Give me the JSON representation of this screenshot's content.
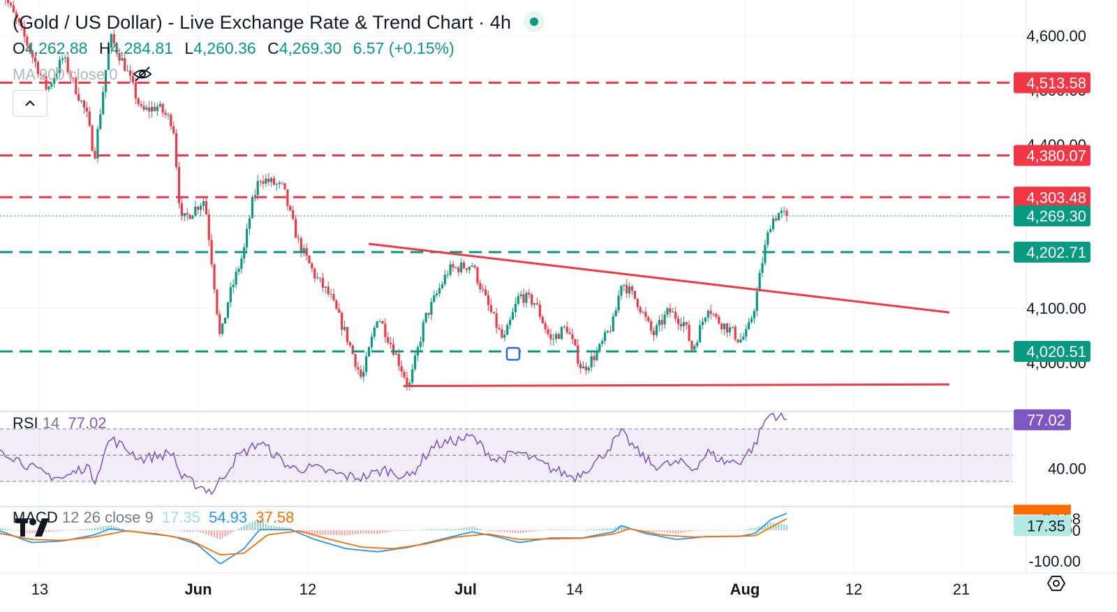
{
  "header": {
    "title": "(Gold / US Dollar) - Live Exchange Rate & Trend Chart · 4h",
    "ohlc": {
      "o_label": "O",
      "o": "4,262.88",
      "h_label": "H",
      "h": "4,284.81",
      "l_label": "L",
      "l": "4,260.36",
      "c_label": "C",
      "c": "4,269.30",
      "change": "6.57 (+0.15%)"
    },
    "ma_label": "MA 200 close 0"
  },
  "rsi_legend": {
    "name": "RSI",
    "period": "14",
    "value": "77.02"
  },
  "macd_legend": {
    "name": "MACD",
    "params": "12 26 close 9",
    "hist": "17.35",
    "macd": "54.93",
    "signal": "37.58"
  },
  "price_axis": {
    "ticks": [
      "4,600.00",
      "4,500.00",
      "4,400.00",
      "4,100.00",
      "4,000.00"
    ],
    "levels": [
      {
        "label": "4,513.58",
        "value": 4513.58,
        "color": "#f23645"
      },
      {
        "label": "4,380.07",
        "value": 4380.07,
        "color": "#f23645"
      },
      {
        "label": "4,303.48",
        "value": 4303.48,
        "color": "#f23645"
      },
      {
        "label": "4,269.30",
        "value": 4269.3,
        "color": "#089981"
      },
      {
        "label": "4,202.71",
        "value": 4202.71,
        "color": "#089981"
      },
      {
        "label": "4,020.51",
        "value": 4020.51,
        "color": "#089981"
      }
    ]
  },
  "rsi_axis": {
    "tick": "40.00",
    "badge": "77.02"
  },
  "macd_axis": {
    "ticks": [
      "37.58",
      "0.00",
      "-100.00"
    ],
    "badge": "17.35"
  },
  "time_axis": [
    "13",
    "Jun",
    "12",
    "Jul",
    "14",
    "Aug",
    "12",
    "21"
  ],
  "colors": {
    "up": "#089981",
    "down": "#f23645",
    "rsi": "#7e57c2",
    "macd": "#2196f3",
    "signal": "#ff6d00"
  },
  "icons": [
    "live-dot-icon",
    "eye-off-icon",
    "chevron-up-icon",
    "tradingview-logo-icon",
    "gear-icon"
  ],
  "chart_data": {
    "type": "candlestick",
    "interval": "4h",
    "ylim": [
      3915,
      4660
    ],
    "drawing": {
      "resistance_lines": [
        4513.58,
        4380.07,
        4303.48
      ],
      "support_lines": [
        4202.71,
        4020.51
      ],
      "trendline_upper": {
        "start": 4218,
        "end": 4092
      },
      "trendline_lower": {
        "start": 3957,
        "end": 3960
      }
    },
    "price_path": [
      [
        0,
        4690
      ],
      [
        3,
        4600
      ],
      [
        6,
        4500
      ],
      [
        8,
        4560
      ],
      [
        11,
        4455
      ],
      [
        12,
        4378
      ],
      [
        14,
        4598
      ],
      [
        16,
        4540
      ],
      [
        18,
        4460
      ],
      [
        20,
        4470
      ],
      [
        22,
        4440
      ],
      [
        23,
        4258
      ],
      [
        26,
        4300
      ],
      [
        27,
        4175
      ],
      [
        28,
        4040
      ],
      [
        29,
        4115
      ],
      [
        31,
        4205
      ],
      [
        32,
        4290
      ],
      [
        33,
        4340
      ],
      [
        36,
        4320
      ],
      [
        37,
        4265
      ],
      [
        38,
        4218
      ],
      [
        40,
        4160
      ],
      [
        42,
        4120
      ],
      [
        44,
        4050
      ],
      [
        46,
        3968
      ],
      [
        48,
        4088
      ],
      [
        50,
        4025
      ],
      [
        52,
        3955
      ],
      [
        54,
        4080
      ],
      [
        57,
        4170
      ],
      [
        60,
        4180
      ],
      [
        62,
        4105
      ],
      [
        64,
        4038
      ],
      [
        66,
        4124
      ],
      [
        68,
        4110
      ],
      [
        70,
        4040
      ],
      [
        72,
        4066
      ],
      [
        74,
        3986
      ],
      [
        76,
        4020
      ],
      [
        78,
        4076
      ],
      [
        79,
        4150
      ],
      [
        81,
        4112
      ],
      [
        83,
        4050
      ],
      [
        85,
        4095
      ],
      [
        87,
        4072
      ],
      [
        88,
        4022
      ],
      [
        90,
        4105
      ],
      [
        91,
        4080
      ],
      [
        93,
        4058
      ],
      [
        94,
        4040
      ],
      [
        95,
        4055
      ],
      [
        96,
        4110
      ],
      [
        97,
        4195
      ],
      [
        98,
        4260
      ],
      [
        99,
        4274
      ],
      [
        100,
        4269.3
      ]
    ],
    "rsi": {
      "period": 14,
      "ylim": [
        0,
        100
      ],
      "bands": [
        70,
        50,
        30
      ],
      "last": 77.02,
      "path": [
        [
          0,
          55
        ],
        [
          5,
          37
        ],
        [
          8,
          32
        ],
        [
          11,
          42
        ],
        [
          12,
          31
        ],
        [
          14,
          63
        ],
        [
          18,
          47
        ],
        [
          22,
          52
        ],
        [
          23,
          33
        ],
        [
          27,
          22
        ],
        [
          30,
          48
        ],
        [
          33,
          60
        ],
        [
          37,
          40
        ],
        [
          40,
          40
        ],
        [
          44,
          34
        ],
        [
          46,
          33
        ],
        [
          49,
          39
        ],
        [
          52,
          33
        ],
        [
          55,
          57
        ],
        [
          60,
          64
        ],
        [
          63,
          46
        ],
        [
          66,
          52
        ],
        [
          70,
          40
        ],
        [
          73,
          33
        ],
        [
          76,
          46
        ],
        [
          79,
          67
        ],
        [
          81,
          53
        ],
        [
          83,
          42
        ],
        [
          87,
          44
        ],
        [
          88,
          39
        ],
        [
          90,
          52
        ],
        [
          92,
          45
        ],
        [
          94,
          45
        ],
        [
          96,
          58
        ],
        [
          97,
          74
        ],
        [
          98,
          82
        ],
        [
          100,
          77
        ]
      ]
    },
    "macd": {
      "params": "12 26 close 9",
      "ylim": [
        -125,
        60
      ],
      "macd_last": 54.93,
      "signal_last": 37.58,
      "hist_last": 17.35,
      "macd_path": [
        [
          0,
          -2
        ],
        [
          4,
          -40
        ],
        [
          8,
          -35
        ],
        [
          11,
          -20
        ],
        [
          12,
          -15
        ],
        [
          14,
          5
        ],
        [
          18,
          -8
        ],
        [
          22,
          -20
        ],
        [
          25,
          -45
        ],
        [
          28,
          -110
        ],
        [
          31,
          -60
        ],
        [
          33,
          2
        ],
        [
          37,
          2
        ],
        [
          40,
          -30
        ],
        [
          44,
          -60
        ],
        [
          48,
          -70
        ],
        [
          52,
          -55
        ],
        [
          56,
          -30
        ],
        [
          60,
          -5
        ],
        [
          63,
          -20
        ],
        [
          66,
          -40
        ],
        [
          70,
          -25
        ],
        [
          74,
          -25
        ],
        [
          78,
          -5
        ],
        [
          79,
          15
        ],
        [
          82,
          -10
        ],
        [
          86,
          -30
        ],
        [
          90,
          -20
        ],
        [
          94,
          -20
        ],
        [
          96,
          -10
        ],
        [
          98,
          35
        ],
        [
          100,
          54.93
        ]
      ],
      "signal_path": [
        [
          0,
          -10
        ],
        [
          4,
          -30
        ],
        [
          8,
          -33
        ],
        [
          12,
          -22
        ],
        [
          16,
          -2
        ],
        [
          20,
          -12
        ],
        [
          24,
          -30
        ],
        [
          28,
          -80
        ],
        [
          31,
          -75
        ],
        [
          34,
          -15
        ],
        [
          38,
          -2
        ],
        [
          42,
          -30
        ],
        [
          46,
          -55
        ],
        [
          50,
          -60
        ],
        [
          54,
          -45
        ],
        [
          58,
          -22
        ],
        [
          62,
          -12
        ],
        [
          66,
          -30
        ],
        [
          70,
          -28
        ],
        [
          74,
          -26
        ],
        [
          78,
          -12
        ],
        [
          80,
          5
        ],
        [
          84,
          -15
        ],
        [
          88,
          -22
        ],
        [
          92,
          -20
        ],
        [
          96,
          -18
        ],
        [
          98,
          10
        ],
        [
          100,
          37.58
        ]
      ]
    }
  }
}
